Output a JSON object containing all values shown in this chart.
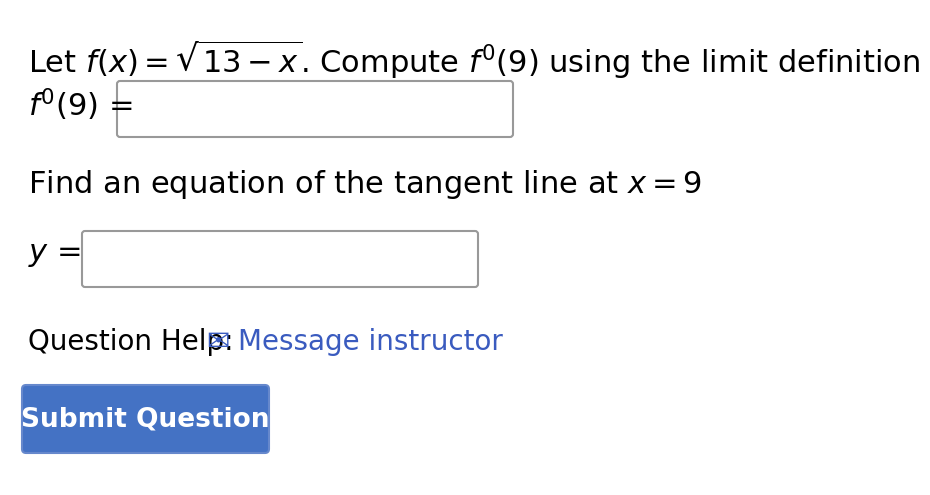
{
  "background_color": "#ffffff",
  "title_line": "Let $f(x) = \\sqrt{13-x}$. Compute $f'(9)$ using the limit definition",
  "label1": "$f'(9)$ =",
  "label2": "$y$ =",
  "tangent_text": "Find an equation of the tangent line at $x = 9$",
  "question_help_text": "Question Help:",
  "message_text": "Message instructor",
  "submit_text": "Submit Question",
  "message_color": "#3a5bbf",
  "submit_button_color": "#4472c4",
  "submit_button_border": "#6688cc",
  "submit_text_color": "#ffffff",
  "title_fontsize": 22,
  "label_fontsize": 22,
  "body_fontsize": 22,
  "help_fontsize": 20,
  "submit_fontsize": 19
}
